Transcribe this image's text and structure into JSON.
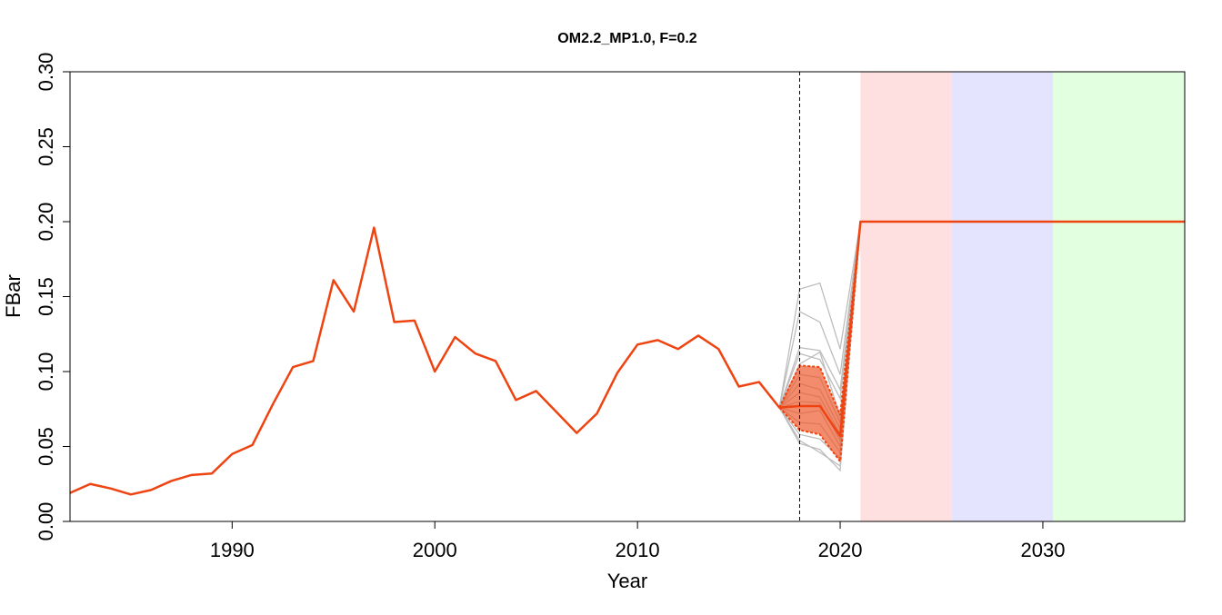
{
  "chart_data": {
    "type": "line",
    "title": "OM2.2_MP1.0, F=0.2",
    "xlabel": "Year",
    "ylabel": "FBar",
    "xlim": [
      1982,
      2037
    ],
    "ylim": [
      0,
      0.3
    ],
    "x_ticks": [
      1990,
      2000,
      2010,
      2020,
      2030
    ],
    "y_ticks": [
      0.0,
      0.05,
      0.1,
      0.15,
      0.2,
      0.25,
      0.3
    ],
    "vline_year": 2018,
    "grid": false,
    "legend": "none",
    "shaded_periods": [
      {
        "from": 2021,
        "to": 2025.5,
        "color": "#ffe0e0"
      },
      {
        "from": 2025.5,
        "to": 2030.5,
        "color": "#e4e4ff"
      },
      {
        "from": 2030.5,
        "to": 2037,
        "color": "#e2ffe0"
      }
    ],
    "colors": {
      "median": "#ee4411",
      "band": "#ee5a2f",
      "band_opacity": 0.7,
      "iterations": "#bdbdbd"
    },
    "median": {
      "x": [
        1982,
        1983,
        1984,
        1985,
        1986,
        1987,
        1988,
        1989,
        1990,
        1991,
        1992,
        1993,
        1994,
        1995,
        1996,
        1997,
        1998,
        1999,
        2000,
        2001,
        2002,
        2003,
        2004,
        2005,
        2006,
        2007,
        2008,
        2009,
        2010,
        2011,
        2012,
        2013,
        2014,
        2015,
        2016,
        2017,
        2018,
        2019,
        2020,
        2021,
        2022,
        2023,
        2024,
        2025,
        2026,
        2027,
        2028,
        2029,
        2030,
        2031,
        2032,
        2033,
        2034,
        2035,
        2036,
        2037
      ],
      "y": [
        0.019,
        0.025,
        0.022,
        0.018,
        0.021,
        0.027,
        0.031,
        0.032,
        0.045,
        0.051,
        0.078,
        0.103,
        0.107,
        0.161,
        0.14,
        0.196,
        0.133,
        0.134,
        0.1,
        0.123,
        0.112,
        0.107,
        0.081,
        0.087,
        0.073,
        0.059,
        0.072,
        0.099,
        0.118,
        0.121,
        0.115,
        0.124,
        0.115,
        0.09,
        0.093,
        0.076,
        0.077,
        0.077,
        0.057,
        0.2,
        0.2,
        0.2,
        0.2,
        0.2,
        0.2,
        0.2,
        0.2,
        0.2,
        0.2,
        0.2,
        0.2,
        0.2,
        0.2,
        0.2,
        0.2,
        0.2
      ]
    },
    "band": {
      "x": [
        2017,
        2018,
        2019,
        2020,
        2021
      ],
      "upper": [
        0.076,
        0.104,
        0.103,
        0.071,
        0.2
      ],
      "lower": [
        0.076,
        0.061,
        0.058,
        0.04,
        0.2
      ]
    },
    "iterations": [
      {
        "x": [
          2017,
          2018,
          2019,
          2020,
          2021
        ],
        "y": [
          0.076,
          0.155,
          0.159,
          0.115,
          0.2
        ]
      },
      {
        "x": [
          2017,
          2018,
          2019,
          2020,
          2021
        ],
        "y": [
          0.076,
          0.14,
          0.133,
          0.098,
          0.2
        ]
      },
      {
        "x": [
          2017,
          2018,
          2019,
          2020,
          2021
        ],
        "y": [
          0.076,
          0.116,
          0.114,
          0.088,
          0.2
        ]
      },
      {
        "x": [
          2017,
          2018,
          2019,
          2020,
          2021
        ],
        "y": [
          0.076,
          0.112,
          0.108,
          0.082,
          0.2
        ]
      },
      {
        "x": [
          2017,
          2018,
          2019,
          2020,
          2021
        ],
        "y": [
          0.076,
          0.105,
          0.113,
          0.07,
          0.2
        ]
      },
      {
        "x": [
          2017,
          2018,
          2019,
          2020,
          2021
        ],
        "y": [
          0.076,
          0.098,
          0.096,
          0.066,
          0.2
        ]
      },
      {
        "x": [
          2017,
          2018,
          2019,
          2020,
          2021
        ],
        "y": [
          0.076,
          0.092,
          0.088,
          0.062,
          0.2
        ]
      },
      {
        "x": [
          2017,
          2018,
          2019,
          2020,
          2021
        ],
        "y": [
          0.076,
          0.086,
          0.083,
          0.058,
          0.2
        ]
      },
      {
        "x": [
          2017,
          2018,
          2019,
          2020,
          2021
        ],
        "y": [
          0.076,
          0.08,
          0.079,
          0.054,
          0.2
        ]
      },
      {
        "x": [
          2017,
          2018,
          2019,
          2020,
          2021
        ],
        "y": [
          0.076,
          0.072,
          0.074,
          0.05,
          0.2
        ]
      },
      {
        "x": [
          2017,
          2018,
          2019,
          2020,
          2021
        ],
        "y": [
          0.076,
          0.066,
          0.065,
          0.046,
          0.2
        ]
      },
      {
        "x": [
          2017,
          2018,
          2019,
          2020,
          2021
        ],
        "y": [
          0.076,
          0.058,
          0.055,
          0.042,
          0.2
        ]
      },
      {
        "x": [
          2017,
          2018,
          2019,
          2020,
          2021
        ],
        "y": [
          0.076,
          0.054,
          0.046,
          0.037,
          0.2
        ]
      },
      {
        "x": [
          2017,
          2018,
          2019,
          2020,
          2021
        ],
        "y": [
          0.076,
          0.052,
          0.048,
          0.034,
          0.2
        ]
      }
    ]
  }
}
